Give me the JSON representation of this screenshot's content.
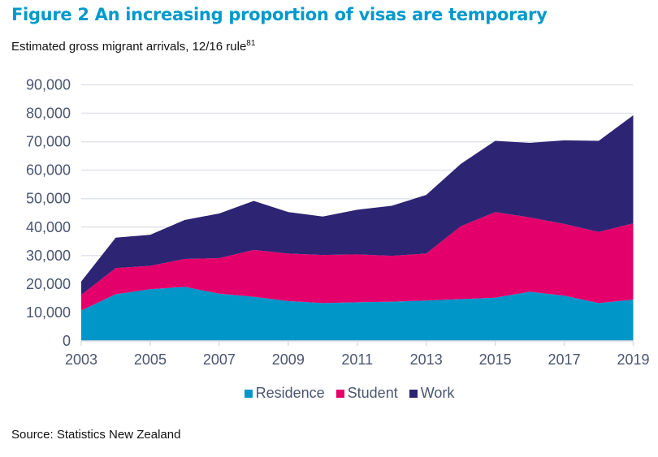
{
  "header": {
    "title": "Figure 2 An increasing proportion of visas are temporary",
    "subtitle": "Estimated gross migrant arrivals, 12/16 rule",
    "subtitle_sup": "81"
  },
  "footer": {
    "source": "Source: Statistics New Zealand"
  },
  "chart_data": {
    "type": "area",
    "stacked": true,
    "title": "Figure 2 An increasing proportion of visas are temporary",
    "subtitle": "Estimated gross migrant arrivals, 12/16 rule",
    "xlabel": "",
    "ylabel": "",
    "x": [
      2003,
      2004,
      2005,
      2006,
      2007,
      2008,
      2009,
      2010,
      2011,
      2012,
      2013,
      2014,
      2015,
      2016,
      2017,
      2018,
      2019
    ],
    "x_tick_labels": [
      "2003",
      "2005",
      "2007",
      "2009",
      "2011",
      "2013",
      "2015",
      "2017",
      "2019"
    ],
    "x_ticks": [
      2003,
      2005,
      2007,
      2009,
      2011,
      2013,
      2015,
      2017,
      2019
    ],
    "ylim": [
      0,
      90000
    ],
    "y_ticks": [
      0,
      10000,
      20000,
      30000,
      40000,
      50000,
      60000,
      70000,
      80000,
      90000
    ],
    "y_tick_labels": [
      "0",
      "10,000",
      "20,000",
      "30,000",
      "40,000",
      "50,000",
      "60,000",
      "70,000",
      "80,000",
      "90,000"
    ],
    "grid": true,
    "legend_position": "bottom",
    "series": [
      {
        "name": "Residence",
        "color": "#0096c8",
        "values": [
          10700,
          16400,
          18200,
          19000,
          16600,
          15500,
          14000,
          13300,
          13600,
          13800,
          14200,
          14700,
          15200,
          17300,
          15900,
          13300,
          14500
        ]
      },
      {
        "name": "Student",
        "color": "#e3006b",
        "values": [
          5500,
          9200,
          8200,
          9800,
          12500,
          16500,
          16700,
          16900,
          16800,
          16100,
          16500,
          25600,
          30100,
          26100,
          25200,
          25000,
          26800
        ]
      },
      {
        "name": "Work",
        "color": "#2d2473",
        "values": [
          4700,
          10700,
          10900,
          13700,
          15700,
          17200,
          14600,
          13500,
          15700,
          17600,
          20600,
          21900,
          25000,
          26200,
          29400,
          32000,
          38000
        ]
      }
    ]
  }
}
